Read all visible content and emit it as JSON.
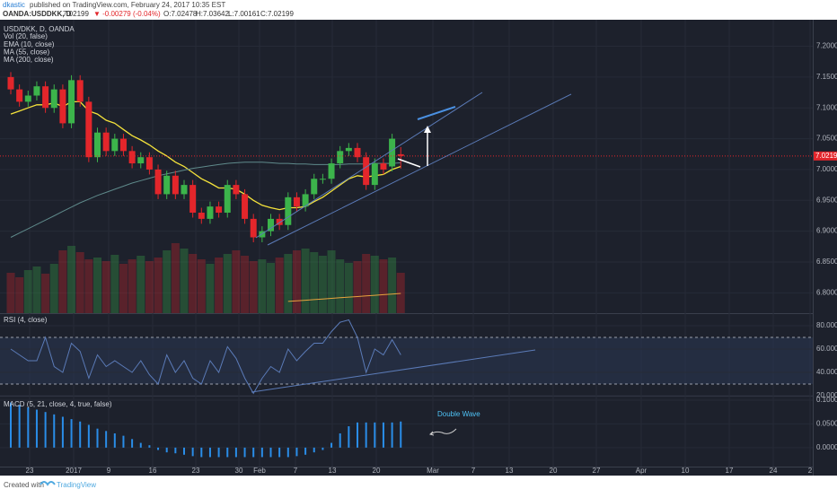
{
  "header": {
    "author": "dkastic",
    "published": "published on TradingView.com, February 24, 2017 10:35 EST",
    "symbol": "OANDA:USDDKK, D",
    "last": "7.02199",
    "change": "▼ -0.00279 (-0.04%)",
    "ohlc": [
      "O:7.02478",
      "H:7.03642",
      "L:7.00161",
      "C:7.02199"
    ]
  },
  "chart_data": [
    {
      "type": "candlestick",
      "title": "USD/DKK, D, OANDA",
      "up_color": "#3cb44b",
      "down_color": "#e3262b",
      "open": [
        7.15,
        7.13,
        7.11,
        7.12,
        7.135,
        7.1,
        7.13,
        7.075,
        7.145,
        7.11,
        7.02,
        7.06,
        7.03,
        7.05,
        7.03,
        7.01,
        7.02,
        7.0,
        6.96,
        6.99,
        6.96,
        6.975,
        6.93,
        6.92,
        6.94,
        6.93,
        6.975,
        6.96,
        6.92,
        6.89,
        6.9,
        6.92,
        6.91,
        6.955,
        6.94,
        6.96,
        6.985,
        6.985,
        7.01,
        7.03,
        7.035,
        7.02,
        6.975,
        7.01,
        7.005,
        7.02478
      ],
      "high": [
        7.158,
        7.138,
        7.128,
        7.143,
        7.143,
        7.138,
        7.138,
        7.153,
        7.153,
        7.118,
        7.068,
        7.068,
        7.058,
        7.058,
        7.038,
        7.028,
        7.028,
        7.008,
        6.998,
        6.998,
        6.983,
        6.983,
        6.938,
        6.948,
        6.948,
        6.983,
        6.983,
        6.968,
        6.928,
        6.908,
        6.928,
        6.928,
        6.963,
        6.963,
        6.968,
        6.993,
        6.993,
        7.018,
        7.038,
        7.043,
        7.043,
        7.028,
        7.018,
        7.018,
        7.058,
        7.03642
      ],
      "low": [
        7.122,
        7.102,
        7.102,
        7.112,
        7.092,
        7.092,
        7.067,
        7.067,
        7.102,
        7.012,
        7.012,
        7.022,
        7.022,
        7.022,
        7.002,
        7.002,
        6.992,
        6.952,
        6.952,
        6.952,
        6.952,
        6.922,
        6.912,
        6.912,
        6.922,
        6.922,
        6.952,
        6.912,
        6.882,
        6.882,
        6.892,
        6.902,
        6.902,
        6.932,
        6.932,
        6.952,
        6.977,
        6.977,
        7.002,
        7.022,
        7.012,
        6.967,
        6.967,
        6.992,
        6.997,
        7.00161
      ],
      "close": [
        7.13,
        7.11,
        7.12,
        7.135,
        7.1,
        7.13,
        7.075,
        7.145,
        7.11,
        7.02,
        7.06,
        7.03,
        7.05,
        7.03,
        7.01,
        7.02,
        7.0,
        6.96,
        6.99,
        6.96,
        6.975,
        6.93,
        6.92,
        6.94,
        6.93,
        6.975,
        6.96,
        6.92,
        6.89,
        6.9,
        6.92,
        6.91,
        6.955,
        6.94,
        6.96,
        6.985,
        6.985,
        7.01,
        7.03,
        7.035,
        7.02,
        6.975,
        7.01,
        7.0,
        7.05,
        7.02199
      ],
      "volume": {
        "name": "Vol (20, false)",
        "values": [
          45,
          40,
          48,
          52,
          44,
          55,
          70,
          75,
          68,
          60,
          62,
          58,
          65,
          55,
          60,
          64,
          58,
          62,
          70,
          78,
          72,
          66,
          60,
          55,
          62,
          66,
          70,
          64,
          58,
          60,
          56,
          62,
          66,
          70,
          72,
          68,
          64,
          70,
          60,
          56,
          58,
          66,
          64,
          60,
          62,
          45
        ]
      },
      "series": [
        {
          "name": "EMA (10, close)",
          "color": "#f5e33b",
          "values": [
            7.09,
            7.095,
            7.1,
            7.105,
            7.105,
            7.108,
            7.102,
            7.11,
            7.11,
            7.095,
            7.09,
            7.08,
            7.075,
            7.065,
            7.055,
            7.048,
            7.04,
            7.03,
            7.022,
            7.012,
            7.005,
            6.995,
            6.985,
            6.978,
            6.97,
            6.97,
            6.968,
            6.96,
            6.95,
            6.942,
            6.938,
            6.935,
            6.938,
            6.938,
            6.94,
            6.948,
            6.955,
            6.965,
            6.975,
            6.985,
            6.99,
            6.988,
            6.99,
            6.992,
            7.0,
            7.005
          ]
        },
        {
          "name": "MA (55, close)",
          "color": "#5f8a8b",
          "values": [
            6.89,
            6.897,
            6.904,
            6.911,
            6.918,
            6.925,
            6.932,
            6.939,
            6.946,
            6.952,
            6.958,
            6.963,
            6.968,
            6.973,
            6.978,
            6.982,
            6.986,
            6.99,
            6.993,
            6.996,
            6.999,
            7.002,
            7.004,
            7.006,
            7.008,
            7.01,
            7.011,
            7.012,
            7.012,
            7.012,
            7.011,
            7.01,
            7.01,
            7.009,
            7.009,
            7.008,
            7.008,
            7.008,
            7.008,
            7.009,
            7.009,
            7.009,
            7.01,
            7.01,
            7.01,
            7.011
          ]
        },
        {
          "name": "MA (200, close)",
          "color": "#e8a33d",
          "values": [
            null,
            null,
            null,
            null,
            null,
            null,
            null,
            null,
            null,
            null,
            null,
            null,
            null,
            null,
            null,
            null,
            null,
            null,
            null,
            null,
            null,
            null,
            null,
            null,
            null,
            null,
            null,
            null,
            null,
            null,
            null,
            null,
            6.786,
            6.787,
            6.788,
            6.789,
            6.79,
            6.791,
            6.792,
            6.793,
            6.794,
            6.795,
            6.796,
            6.797,
            6.798,
            6.799
          ]
        }
      ],
      "ylim": [
        6.767,
        7.243
      ],
      "yticks": [
        {
          "value": 7.2,
          "label": "7.20000"
        },
        {
          "value": 7.15,
          "label": "7.15000"
        },
        {
          "value": 7.1,
          "label": "7.10000"
        },
        {
          "value": 7.05,
          "label": "7.05000"
        },
        {
          "value": 7.0,
          "label": "7.00000"
        },
        {
          "value": 6.95,
          "label": "6.95000"
        },
        {
          "value": 6.9,
          "label": "6.90000"
        },
        {
          "value": 6.85,
          "label": "6.85000"
        },
        {
          "value": 6.8,
          "label": "6.80000"
        }
      ],
      "grid": true
    },
    {
      "type": "line",
      "title": "RSI (4, close)",
      "series": [
        {
          "name": "RSI",
          "color": "#5b7bb8",
          "values": [
            60,
            55,
            50,
            50,
            70,
            45,
            40,
            65,
            58,
            35,
            55,
            45,
            50,
            45,
            40,
            50,
            38,
            30,
            55,
            40,
            50,
            35,
            30,
            50,
            40,
            62,
            52,
            35,
            22,
            35,
            45,
            40,
            60,
            50,
            58,
            65,
            65,
            75,
            83,
            85,
            70,
            40,
            60,
            55,
            68,
            55
          ]
        }
      ],
      "bands": [
        70,
        30
      ],
      "ylim": [
        20,
        90
      ],
      "yticks": [
        {
          "value": 80,
          "label": "80.0000"
        },
        {
          "value": 60,
          "label": "60.0000"
        },
        {
          "value": 40,
          "label": "40.0000"
        },
        {
          "value": 20,
          "label": "20.0000"
        }
      ],
      "grid": true
    },
    {
      "type": "bar",
      "title": "MACD (5, 21, close, 4, true, false)",
      "color": "#2a8de8",
      "values": [
        0.095,
        0.09,
        0.085,
        0.08,
        0.075,
        0.07,
        0.065,
        0.06,
        0.055,
        0.048,
        0.04,
        0.035,
        0.03,
        0.025,
        0.018,
        0.01,
        0.005,
        -0.005,
        -0.01,
        -0.012,
        -0.015,
        -0.018,
        -0.02,
        -0.02,
        -0.02,
        -0.02,
        -0.02,
        -0.02,
        -0.02,
        -0.02,
        -0.02,
        -0.02,
        -0.02,
        -0.018,
        -0.015,
        -0.01,
        -0.005,
        0.01,
        0.03,
        0.045,
        0.053,
        0.053,
        0.053,
        0.053,
        0.053,
        0.055
      ],
      "annotation": "Double Wave",
      "ylim": [
        -0.04,
        0.1075
      ],
      "yticks": [
        {
          "value": 0.1,
          "label": "0.1000"
        },
        {
          "value": 0.05,
          "label": "0.0500"
        },
        {
          "value": 0,
          "label": "0.0000"
        }
      ],
      "grid": true
    }
  ],
  "x_axis_labels": [
    "23",
    "2017",
    "9",
    "16",
    "23",
    "30",
    "Feb",
    "7",
    "13",
    "20",
    "Mar",
    "7",
    "13",
    "20",
    "27",
    "Apr",
    "10",
    "17",
    "24",
    "2"
  ],
  "footer": {
    "created": "Created with",
    "brand": "TradingView"
  }
}
